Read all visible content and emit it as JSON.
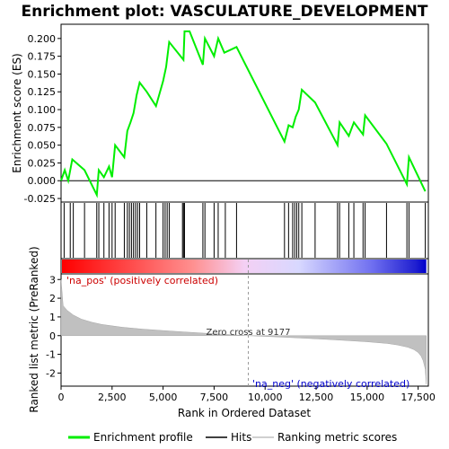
{
  "chart_data": {
    "type": "line",
    "title": "Enrichment plot: VASCULATURE_DEVELOPMENT",
    "top_panel": {
      "ylabel": "Enrichment score (ES)",
      "ylim": [
        -0.03,
        0.22
      ],
      "yticks": [
        "-0.025",
        "0.000",
        "0.025",
        "0.050",
        "0.075",
        "0.100",
        "0.125",
        "0.150",
        "0.175",
        "0.200"
      ],
      "series": [
        {
          "name": "Enrichment profile",
          "color": "#00ee00",
          "x": [
            0,
            180,
            350,
            550,
            1150,
            1750,
            1850,
            2100,
            2350,
            2500,
            2650,
            3100,
            3250,
            3400,
            3550,
            3700,
            3850,
            4200,
            4650,
            5000,
            5150,
            5300,
            6000,
            6050,
            6300,
            6950,
            7050,
            7500,
            7700,
            8000,
            8600,
            10950,
            11150,
            11350,
            11500,
            11650,
            11800,
            12450,
            13550,
            13650,
            14100,
            14350,
            14800,
            14900,
            15950,
            16950,
            17050,
            17850
          ],
          "y": [
            0.0,
            0.015,
            0.0,
            0.03,
            0.015,
            -0.02,
            0.015,
            0.005,
            0.02,
            0.005,
            0.05,
            0.033,
            0.07,
            0.082,
            0.095,
            0.12,
            0.138,
            0.125,
            0.105,
            0.14,
            0.16,
            0.195,
            0.17,
            0.21,
            0.21,
            0.163,
            0.2,
            0.175,
            0.2,
            0.18,
            0.188,
            0.055,
            0.078,
            0.075,
            0.09,
            0.1,
            0.128,
            0.11,
            0.05,
            0.082,
            0.063,
            0.082,
            0.065,
            0.092,
            0.052,
            -0.005,
            0.033,
            -0.015
          ]
        }
      ]
    },
    "hits": {
      "name": "Hits",
      "color": "#000000",
      "positions": [
        150,
        450,
        600,
        1150,
        1750,
        1850,
        2100,
        2350,
        2500,
        2650,
        3100,
        3250,
        3350,
        3450,
        3550,
        3650,
        3750,
        3850,
        4200,
        4650,
        5000,
        5100,
        5200,
        5300,
        5950,
        6000,
        6050,
        6950,
        7050,
        7500,
        7700,
        8050,
        8600,
        10950,
        11150,
        11350,
        11450,
        11550,
        11650,
        11800,
        12450,
        13550,
        13650,
        14100,
        14350,
        14800,
        14900,
        15950,
        16950,
        17050,
        17850
      ]
    },
    "bottom_panel": {
      "ylabel": "Ranked list metric (PreRanked)",
      "xlabel": "Rank in Ordered Dataset",
      "ylim": [
        -2.7,
        3.3
      ],
      "yticks": [
        "-2",
        "-1",
        "0",
        "1",
        "2",
        "3"
      ],
      "legend_name": "Ranking metric scores",
      "fill_color": "#c0c0c0",
      "x": [
        0,
        100,
        300,
        600,
        1000,
        1500,
        2000,
        3000,
        4000,
        5000,
        6000,
        7000,
        8000,
        9177,
        10000,
        11000,
        12000,
        13000,
        14000,
        15000,
        16000,
        16500,
        17000,
        17300,
        17500,
        17650,
        17750,
        17850,
        17900
      ],
      "y": [
        3.0,
        1.6,
        1.35,
        1.1,
        0.88,
        0.72,
        0.6,
        0.45,
        0.35,
        0.27,
        0.2,
        0.13,
        0.07,
        0.0,
        -0.04,
        -0.09,
        -0.14,
        -0.2,
        -0.26,
        -0.33,
        -0.42,
        -0.5,
        -0.62,
        -0.75,
        -0.9,
        -1.1,
        -1.35,
        -1.8,
        -2.6
      ]
    },
    "xaxis": {
      "xlim": [
        0,
        18000
      ],
      "xticks": [
        "0",
        "2,500",
        "5,000",
        "7,500",
        "10,000",
        "12,500",
        "15,000",
        "17,500"
      ]
    },
    "annotations": {
      "pos_label": "'na_pos' (positively correlated)",
      "neg_label": "'na_neg' (negatively correlated)",
      "zero_cross": "Zero cross at 9177",
      "zero_cross_rank": 9177
    },
    "legend_items": [
      "Enrichment profile",
      "Hits",
      "Ranking metric scores"
    ]
  }
}
